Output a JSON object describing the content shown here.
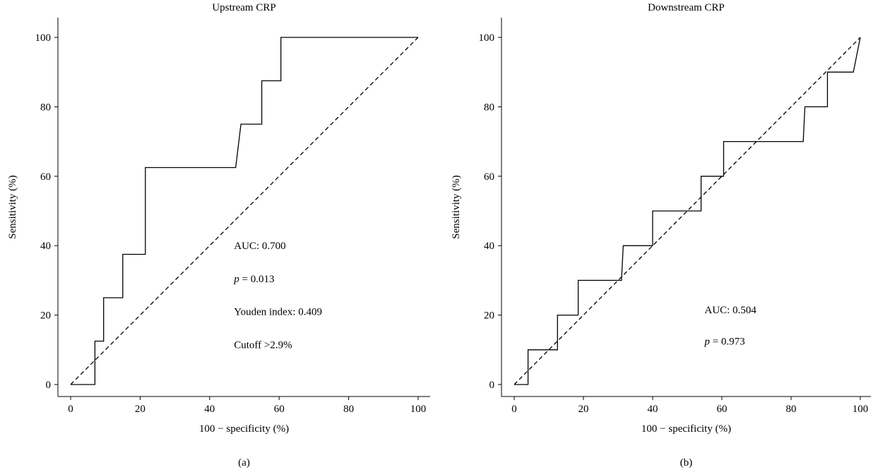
{
  "chart_data": [
    {
      "type": "line",
      "title": "Upstream CRP",
      "xlabel": "100 − specificity (%)",
      "ylabel": "Sensitivity (%)",
      "panel_label": "(a)",
      "xlim": [
        0,
        100
      ],
      "ylim": [
        0,
        100
      ],
      "xticks": [
        0,
        20,
        40,
        60,
        80,
        100
      ],
      "yticks": [
        0,
        20,
        40,
        60,
        80,
        100
      ],
      "grid": false,
      "series": [
        {
          "style": "solid",
          "x": [
            0,
            7,
            7,
            9.5,
            9.5,
            15,
            15,
            21.5,
            21.5,
            47.5,
            49,
            55,
            55,
            60.5,
            60.5,
            100
          ],
          "y": [
            0,
            0,
            12.5,
            12.5,
            25,
            25,
            37.5,
            37.5,
            62.5,
            62.5,
            75,
            75,
            87.5,
            87.5,
            100,
            100
          ]
        },
        {
          "style": "dashed",
          "x": [
            0,
            100
          ],
          "y": [
            0,
            100
          ]
        }
      ],
      "annotations": [
        {
          "label": "AUC: 0.700",
          "x": 47,
          "y": 39
        },
        {
          "label": "= 0.013",
          "prefix_italic": "p",
          "x": 47,
          "y": 29.5
        },
        {
          "label": "Youden index: 0.409",
          "x": 47,
          "y": 20
        },
        {
          "label": "Cutoff >2.9%",
          "x": 47,
          "y": 10.5
        }
      ]
    },
    {
      "type": "line",
      "title": "Downstream CRP",
      "xlabel": "100 − specificity (%)",
      "ylabel": "Sensitivity (%)",
      "panel_label": "(b)",
      "xlim": [
        0,
        100
      ],
      "ylim": [
        0,
        100
      ],
      "xticks": [
        0,
        20,
        40,
        60,
        80,
        100
      ],
      "yticks": [
        0,
        20,
        40,
        60,
        80,
        100
      ],
      "grid": false,
      "series": [
        {
          "style": "solid",
          "x": [
            0,
            4,
            4,
            12.5,
            12.5,
            18.5,
            18.5,
            31,
            31.5,
            40,
            40,
            54,
            54,
            60.5,
            60.5,
            83.5,
            84,
            90.5,
            90.5,
            98,
            100
          ],
          "y": [
            0,
            0,
            10,
            10,
            20,
            20,
            30,
            30,
            40,
            40,
            50,
            50,
            60,
            60,
            70,
            70,
            80,
            80,
            90,
            90,
            100
          ]
        },
        {
          "style": "dashed",
          "x": [
            0,
            100
          ],
          "y": [
            0,
            100
          ]
        }
      ],
      "annotations": [
        {
          "label": "AUC: 0.504",
          "x": 55,
          "y": 20.5
        },
        {
          "label": "= 0.973",
          "prefix_italic": "p",
          "x": 55,
          "y": 11.5
        }
      ]
    }
  ]
}
